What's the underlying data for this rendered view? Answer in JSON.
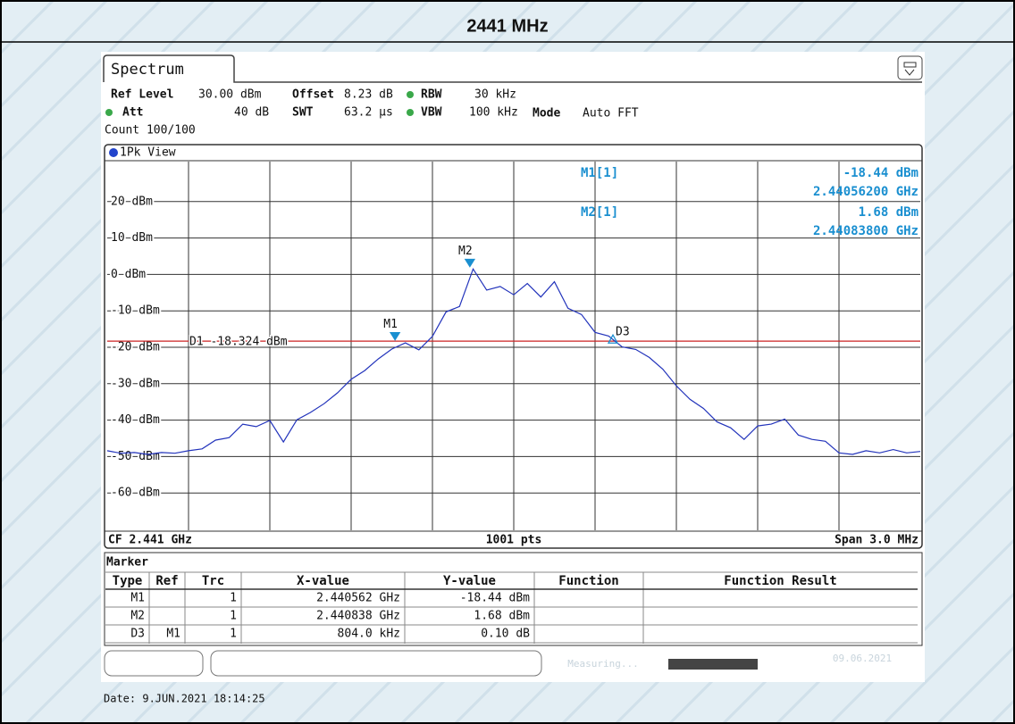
{
  "header": {
    "title": "2441 MHz"
  },
  "tab": "Spectrum",
  "settings": {
    "ref_level_label": "Ref Level",
    "ref_level": "30.00 dBm",
    "offset_label": "Offset",
    "offset": "8.23 dB",
    "rbw_label": "RBW",
    "rbw": "30 kHz",
    "att_label": "Att",
    "att": "40 dB",
    "swt_label": "SWT",
    "swt": "63.2 µs",
    "vbw_label": "VBW",
    "vbw": "100 kHz",
    "mode_label": "Mode",
    "mode": "Auto FFT",
    "count": "Count 100/100"
  },
  "view": "1Pk View",
  "readout": [
    {
      "name": "M1[1]",
      "level": "-18.44 dBm",
      "freq": "2.44056200 GHz"
    },
    {
      "name": "M2[1]",
      "level": "1.68 dBm",
      "freq": "2.44083800 GHz"
    }
  ],
  "chart_data": {
    "type": "line",
    "color": "#2233bb",
    "xlim": [
      2.4395,
      2.4425
    ],
    "ylim": [
      -70,
      30
    ],
    "yticks": [
      {
        "value": 20,
        "label": "20 dBm"
      },
      {
        "value": 10,
        "label": "10 dBm"
      },
      {
        "value": 0,
        "label": "0 dBm"
      },
      {
        "value": -10,
        "label": "-10 dBm"
      },
      {
        "value": -20,
        "label": "-20 dBm"
      },
      {
        "value": -30,
        "label": "-30 dBm"
      },
      {
        "value": -40,
        "label": "-40 dBm"
      },
      {
        "value": -50,
        "label": "-50 dBm"
      },
      {
        "value": -60,
        "label": "-60 dBm"
      }
    ],
    "grid": true,
    "x": [
      2.4395,
      2.43955,
      2.4396,
      2.43965,
      2.4397,
      2.43975,
      2.4398,
      2.43985,
      2.4399,
      2.43995,
      2.44,
      2.44005,
      2.4401,
      2.44015,
      2.4402,
      2.44025,
      2.4403,
      2.44035,
      2.4404,
      2.44045,
      2.4405,
      2.44055,
      2.4406,
      2.44065,
      2.4407,
      2.44075,
      2.4408,
      2.44085,
      2.4409,
      2.44095,
      2.441,
      2.44105,
      2.4411,
      2.44115,
      2.4412,
      2.44125,
      2.4413,
      2.44135,
      2.4414,
      2.44145,
      2.4415,
      2.44155,
      2.4416,
      2.44165,
      2.4417,
      2.44175,
      2.4418,
      2.44185,
      2.4419,
      2.44195,
      2.442,
      2.44205,
      2.4421,
      2.44215,
      2.4422,
      2.44225,
      2.4423,
      2.44235,
      2.4424,
      2.44245,
      2.4425
    ],
    "values": [
      -48.4,
      -49.1,
      -48.9,
      -49.4,
      -48.9,
      -49.1,
      -48.4,
      -47.9,
      -45.5,
      -44.8,
      -41.1,
      -41.8,
      -40.1,
      -46,
      -39.9,
      -37.9,
      -35.5,
      -32.5,
      -28.8,
      -26.4,
      -23.2,
      -20.5,
      -18.8,
      -20.7,
      -17,
      -10.3,
      -8.8,
      1.5,
      -4.3,
      -3.3,
      -5.6,
      -2.5,
      -6.2,
      -2,
      -9.3,
      -11,
      -15.9,
      -16.9,
      -19.9,
      -20.6,
      -22.8,
      -26,
      -30.6,
      -34.3,
      -36.8,
      -40.5,
      -42.1,
      -45.3,
      -41.6,
      -41.1,
      -39.7,
      -44.1,
      -45.3,
      -45.8,
      -49,
      -49.4,
      -48.4,
      -49,
      -48.1,
      -49,
      -48.6
    ],
    "display_line": {
      "label": "D1 -18.324 dBm",
      "value": -18.324,
      "color": "#cc2222"
    },
    "markers": [
      {
        "label": "M1",
        "x": 2.440562,
        "y": -18.44
      },
      {
        "label": "M2",
        "x": 2.440838,
        "y": 1.68
      },
      {
        "label": "D3",
        "x": 2.441366,
        "y": -18.34
      }
    ],
    "marker_color": "#1a8fd0",
    "footer": {
      "center_freq": "CF 2.441 GHz",
      "points": "1001 pts",
      "span": "Span 3.0 MHz"
    }
  },
  "marker_table": {
    "title": "Marker",
    "columns": [
      "Type",
      "Ref",
      "Trc",
      "X-value",
      "Y-value",
      "Function",
      "Function Result"
    ],
    "rows": [
      {
        "type": "M1",
        "trc": "1",
        "x_value": "2.440562 GHz",
        "y_value": "-18.44 dBm"
      },
      {
        "type": "M2",
        "trc": "1",
        "x_value": "2.440838 GHz",
        "y_value": "1.68 dBm"
      },
      {
        "type": "D3",
        "ref": "M1",
        "trc": "1",
        "x_value": "804.0 kHz",
        "y_value": "0.10 dB"
      }
    ]
  },
  "status": {
    "state": "Measuring...",
    "date": "09.06.2021"
  },
  "date_line": "Date: 9.JUN.2021  18:14:25"
}
